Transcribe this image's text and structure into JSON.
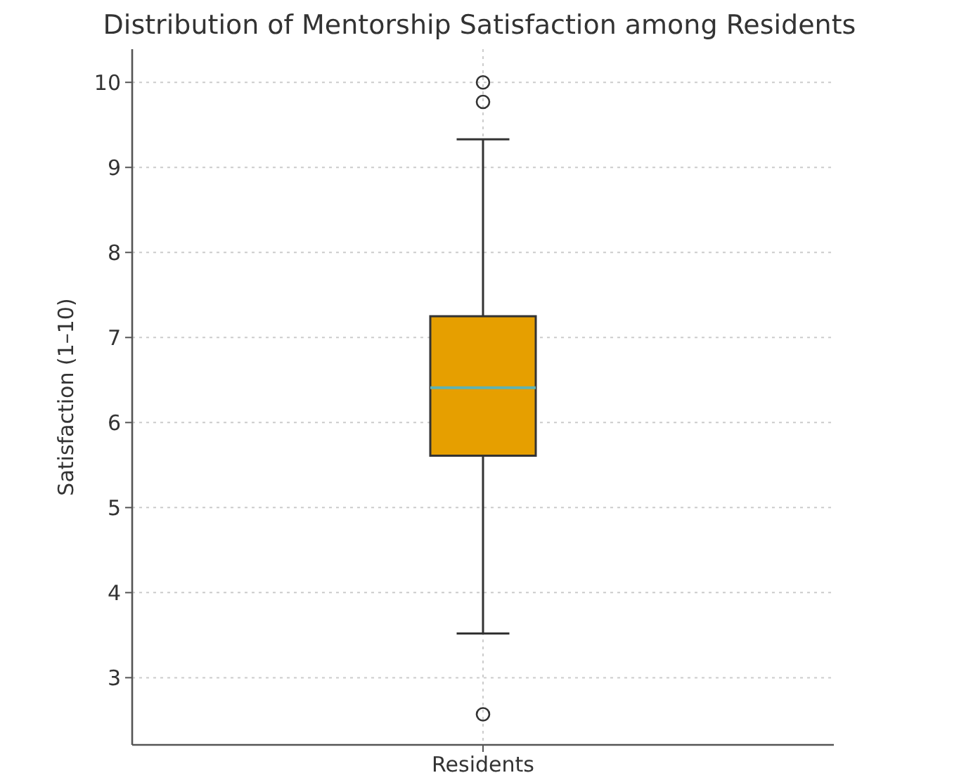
{
  "chart_data": {
    "type": "box",
    "title": "Distribution of Mentorship Satisfaction among Residents",
    "ylabel": "Satisfaction (1–10)",
    "categories": [
      "Residents"
    ],
    "color": "#e69f00",
    "boxes": [
      {
        "low": 3.52,
        "q1": 5.61,
        "median": 6.41,
        "q3": 7.25,
        "high": 9.33,
        "outliers": [
          10.0,
          9.77,
          2.57
        ]
      }
    ],
    "ylim": [
      2.21,
      10.39
    ],
    "yticks": [
      3,
      4,
      5,
      6,
      7,
      8,
      9,
      10
    ],
    "grid": true
  }
}
